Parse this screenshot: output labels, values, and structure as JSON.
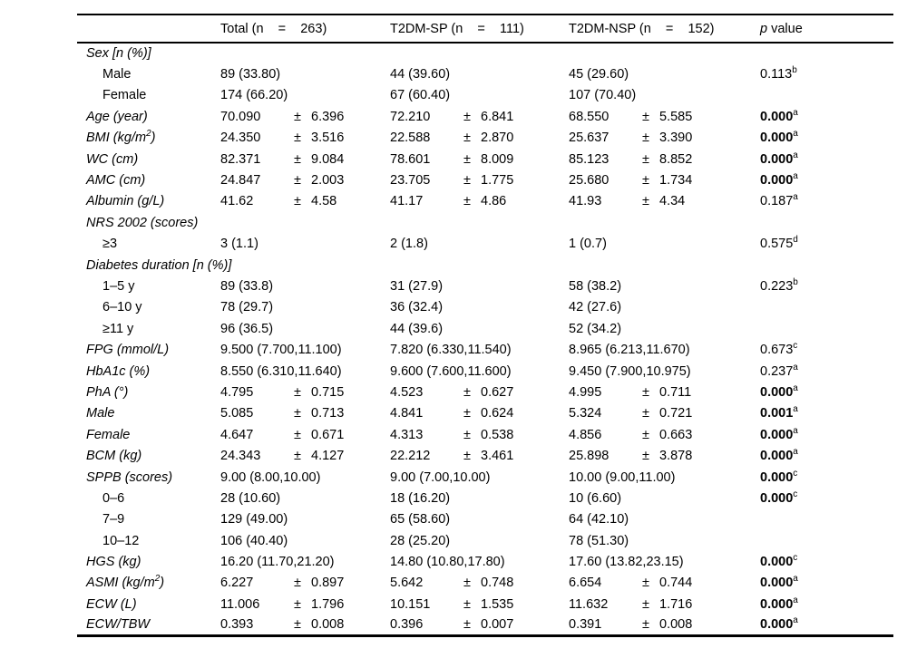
{
  "table": {
    "pm_symbol": "±",
    "header": {
      "col_label": "",
      "total": "Total (n    =    263)",
      "sp": "T2DM-SP (n    =    111)",
      "nsp": "T2DM-NSP (n    =    152)",
      "p_italic": "p",
      "p_rest": " value"
    },
    "rows": [
      {
        "label": "Sex [n (%)]",
        "italic": true,
        "indent": false,
        "cells": [
          null,
          null,
          null
        ],
        "p": null
      },
      {
        "label": "Male",
        "italic": false,
        "indent": true,
        "cells": [
          "89 (33.80)",
          "44 (39.60)",
          "45 (29.60)"
        ],
        "p": "0.113",
        "p_sup": "b",
        "p_bold": false
      },
      {
        "label": "Female",
        "italic": false,
        "indent": true,
        "cells": [
          "174 (66.20)",
          "67 (60.40)",
          "107 (70.40)"
        ],
        "p": null
      },
      {
        "label": "Age (year)",
        "italic": true,
        "indent": false,
        "cells": [
          [
            "70.090",
            "6.396"
          ],
          [
            "72.210",
            "6.841"
          ],
          [
            "68.550",
            "5.585"
          ]
        ],
        "p": "0.000",
        "p_sup": "a",
        "p_bold": true
      },
      {
        "label": [
          "BMI (kg/m",
          "2",
          ")"
        ],
        "italic": true,
        "indent": false,
        "cells": [
          [
            "24.350",
            "3.516"
          ],
          [
            "22.588",
            "2.870"
          ],
          [
            "25.637",
            "3.390"
          ]
        ],
        "p": "0.000",
        "p_sup": "a",
        "p_bold": true
      },
      {
        "label": "WC (cm)",
        "italic": true,
        "indent": false,
        "cells": [
          [
            "82.371",
            "9.084"
          ],
          [
            "78.601",
            "8.009"
          ],
          [
            "85.123",
            "8.852"
          ]
        ],
        "p": "0.000",
        "p_sup": "a",
        "p_bold": true
      },
      {
        "label": "AMC (cm)",
        "italic": true,
        "indent": false,
        "cells": [
          [
            "24.847",
            "2.003"
          ],
          [
            "23.705",
            "1.775"
          ],
          [
            "25.680",
            "1.734"
          ]
        ],
        "p": "0.000",
        "p_sup": "a",
        "p_bold": true
      },
      {
        "label": "Albumin (g/L)",
        "italic": true,
        "indent": false,
        "cells": [
          [
            "41.62",
            "4.58"
          ],
          [
            "41.17",
            "4.86"
          ],
          [
            "41.93",
            "4.34"
          ]
        ],
        "p": "0.187",
        "p_sup": "a",
        "p_bold": false
      },
      {
        "label": "NRS 2002 (scores)",
        "italic": true,
        "indent": false,
        "cells": [
          null,
          null,
          null
        ],
        "p": null
      },
      {
        "label": "≥3",
        "italic": false,
        "indent": true,
        "cells": [
          "3 (1.1)",
          "2 (1.8)",
          "1 (0.7)"
        ],
        "p": "0.575",
        "p_sup": "d",
        "p_bold": false
      },
      {
        "label": "Diabetes duration [n (%)]",
        "italic": true,
        "indent": false,
        "cells": [
          null,
          null,
          null
        ],
        "p": null
      },
      {
        "label": "1–5 y",
        "italic": false,
        "indent": true,
        "cells": [
          "89 (33.8)",
          "31 (27.9)",
          "58 (38.2)"
        ],
        "p": "0.223",
        "p_sup": "b",
        "p_bold": false
      },
      {
        "label": "6–10 y",
        "italic": false,
        "indent": true,
        "cells": [
          "78 (29.7)",
          "36 (32.4)",
          "42 (27.6)"
        ],
        "p": null
      },
      {
        "label": "≥11 y",
        "italic": false,
        "indent": true,
        "cells": [
          "96 (36.5)",
          "44 (39.6)",
          "52 (34.2)"
        ],
        "p": null
      },
      {
        "label": "FPG (mmol/L)",
        "italic": true,
        "indent": false,
        "cells": [
          "9.500 (7.700,11.100)",
          "7.820 (6.330,11.540)",
          "8.965 (6.213,11.670)"
        ],
        "p": "0.673",
        "p_sup": "c",
        "p_bold": false
      },
      {
        "label": "HbA1c (%)",
        "italic": true,
        "indent": false,
        "cells": [
          "8.550 (6.310,11.640)",
          "9.600 (7.600,11.600)",
          "9.450 (7.900,10.975)"
        ],
        "p": "0.237",
        "p_sup": "a",
        "p_bold": false
      },
      {
        "label": "PhA (°)",
        "italic": true,
        "indent": false,
        "cells": [
          [
            "4.795",
            "0.715"
          ],
          [
            "4.523",
            "0.627"
          ],
          [
            "4.995",
            "0.711"
          ]
        ],
        "p": "0.000",
        "p_sup": "a",
        "p_bold": true
      },
      {
        "label": "Male",
        "italic": true,
        "indent": false,
        "cells": [
          [
            "5.085",
            "0.713"
          ],
          [
            "4.841",
            "0.624"
          ],
          [
            "5.324",
            "0.721"
          ]
        ],
        "p": "0.001",
        "p_sup": "a",
        "p_bold": true
      },
      {
        "label": "Female",
        "italic": true,
        "indent": false,
        "cells": [
          [
            "4.647",
            "0.671"
          ],
          [
            "4.313",
            "0.538"
          ],
          [
            "4.856",
            "0.663"
          ]
        ],
        "p": "0.000",
        "p_sup": "a",
        "p_bold": true
      },
      {
        "label": "BCM (kg)",
        "italic": true,
        "indent": false,
        "cells": [
          [
            "24.343",
            "4.127"
          ],
          [
            "22.212",
            "3.461"
          ],
          [
            "25.898",
            "3.878"
          ]
        ],
        "p": "0.000",
        "p_sup": "a",
        "p_bold": true
      },
      {
        "label": "SPPB (scores)",
        "italic": true,
        "indent": false,
        "cells": [
          "9.00 (8.00,10.00)",
          "9.00 (7.00,10.00)",
          "10.00 (9.00,11.00)"
        ],
        "p": "0.000",
        "p_sup": "c",
        "p_bold": true
      },
      {
        "label": "0–6",
        "italic": false,
        "indent": true,
        "cells": [
          "28 (10.60)",
          "18 (16.20)",
          "10 (6.60)"
        ],
        "p": "0.000",
        "p_sup": "c",
        "p_bold": true
      },
      {
        "label": "7–9",
        "italic": false,
        "indent": true,
        "cells": [
          "129 (49.00)",
          "65 (58.60)",
          "64 (42.10)"
        ],
        "p": null
      },
      {
        "label": "10–12",
        "italic": false,
        "indent": true,
        "cells": [
          "106 (40.40)",
          "28 (25.20)",
          "78 (51.30)"
        ],
        "p": null
      },
      {
        "label": "HGS (kg)",
        "italic": true,
        "indent": false,
        "cells": [
          "16.20 (11.70,21.20)",
          "14.80 (10.80,17.80)",
          "17.60 (13.82,23.15)"
        ],
        "p": "0.000",
        "p_sup": "c",
        "p_bold": true
      },
      {
        "label": [
          "ASMI (kg/m",
          "2",
          ")"
        ],
        "italic": true,
        "indent": false,
        "cells": [
          [
            "6.227",
            "0.897"
          ],
          [
            "5.642",
            "0.748"
          ],
          [
            "6.654",
            "0.744"
          ]
        ],
        "p": "0.000",
        "p_sup": "a",
        "p_bold": true
      },
      {
        "label": "ECW (L)",
        "italic": true,
        "indent": false,
        "cells": [
          [
            "11.006",
            "1.796"
          ],
          [
            "10.151",
            "1.535"
          ],
          [
            "11.632",
            "1.716"
          ]
        ],
        "p": "0.000",
        "p_sup": "a",
        "p_bold": true
      },
      {
        "label": "ECW/TBW",
        "italic": true,
        "indent": false,
        "cells": [
          [
            "0.393",
            "0.008"
          ],
          [
            "0.396",
            "0.007"
          ],
          [
            "0.391",
            "0.008"
          ]
        ],
        "p": "0.000",
        "p_sup": "a",
        "p_bold": true
      }
    ]
  }
}
